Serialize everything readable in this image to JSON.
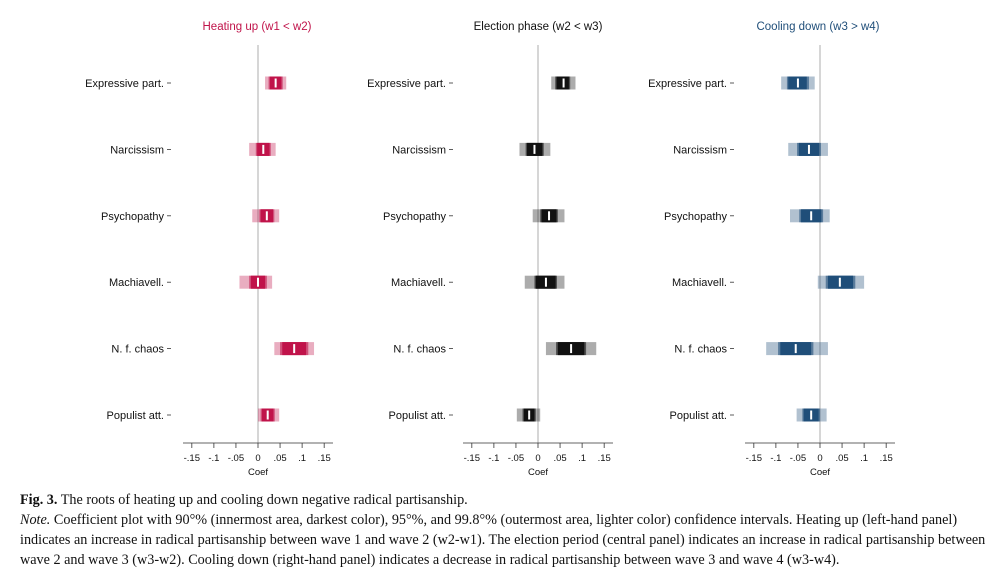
{
  "chart_data": [
    {
      "type": "coefficient-plot",
      "title": "Heating up (w1 < w2)",
      "title_color": "#c0134a",
      "color": "#c0134a",
      "xlabel": "Coef",
      "xlim": [
        -0.17,
        0.17
      ],
      "xticks": [
        -0.15,
        -0.1,
        -0.05,
        0,
        0.05,
        0.1,
        0.15
      ],
      "xtick_labels": [
        "-.15",
        "-.1",
        "-.05",
        "0",
        ".05",
        ".1",
        ".15"
      ],
      "categories": [
        "Expressive part.",
        "Narcissism",
        "Psychopathy",
        "Machiavell.",
        "N. f. chaos",
        "Populist att."
      ],
      "points": [
        {
          "label": "Expressive part.",
          "coef": 0.04,
          "ci90": [
            0.027,
            0.053
          ],
          "ci95": [
            0.024,
            0.056
          ],
          "ci998": [
            0.016,
            0.064
          ]
        },
        {
          "label": "Narcissism",
          "coef": 0.012,
          "ci90": [
            -0.002,
            0.026
          ],
          "ci95": [
            -0.005,
            0.029
          ],
          "ci998": [
            -0.02,
            0.04
          ]
        },
        {
          "label": "Psychopathy",
          "coef": 0.02,
          "ci90": [
            0.006,
            0.034
          ],
          "ci95": [
            0.003,
            0.037
          ],
          "ci998": [
            -0.013,
            0.048
          ]
        },
        {
          "label": "Machiavell.",
          "coef": 0.0,
          "ci90": [
            -0.016,
            0.016
          ],
          "ci95": [
            -0.02,
            0.02
          ],
          "ci998": [
            -0.042,
            0.032
          ]
        },
        {
          "label": "N. f. chaos",
          "coef": 0.082,
          "ci90": [
            0.055,
            0.109
          ],
          "ci95": [
            0.05,
            0.114
          ],
          "ci998": [
            0.037,
            0.127
          ]
        },
        {
          "label": "Populist att.",
          "coef": 0.022,
          "ci90": [
            0.009,
            0.035
          ],
          "ci95": [
            0.006,
            0.038
          ],
          "ci998": [
            0.0,
            0.048
          ]
        }
      ]
    },
    {
      "type": "coefficient-plot",
      "title": "Election phase (w2 < w3)",
      "title_color": "#111111",
      "color": "#111111",
      "xlabel": "Coef",
      "xlim": [
        -0.17,
        0.17
      ],
      "xticks": [
        -0.15,
        -0.1,
        -0.05,
        0,
        0.05,
        0.1,
        0.15
      ],
      "xtick_labels": [
        "-.15",
        "-.1",
        "-.05",
        "0",
        ".05",
        ".1",
        ".15"
      ],
      "categories": [
        "Expressive part.",
        "Narcissism",
        "Psychopathy",
        "Machiavell.",
        "N. f. chaos",
        "Populist att."
      ],
      "points": [
        {
          "label": "Expressive part.",
          "coef": 0.058,
          "ci90": [
            0.042,
            0.07
          ],
          "ci95": [
            0.039,
            0.073
          ],
          "ci998": [
            0.03,
            0.085
          ]
        },
        {
          "label": "Narcissism",
          "coef": -0.008,
          "ci90": [
            -0.025,
            0.01
          ],
          "ci95": [
            -0.028,
            0.013
          ],
          "ci998": [
            -0.042,
            0.028
          ]
        },
        {
          "label": "Psychopathy",
          "coef": 0.025,
          "ci90": [
            0.008,
            0.042
          ],
          "ci95": [
            0.005,
            0.045
          ],
          "ci998": [
            -0.012,
            0.06
          ]
        },
        {
          "label": "Machiavell.",
          "coef": 0.018,
          "ci90": [
            -0.005,
            0.04
          ],
          "ci95": [
            -0.008,
            0.043
          ],
          "ci998": [
            -0.03,
            0.06
          ]
        },
        {
          "label": "N. f. chaos",
          "coef": 0.075,
          "ci90": [
            0.045,
            0.105
          ],
          "ci95": [
            0.041,
            0.109
          ],
          "ci998": [
            0.018,
            0.132
          ]
        },
        {
          "label": "Populist att.",
          "coef": -0.02,
          "ci90": [
            -0.032,
            -0.008
          ],
          "ci95": [
            -0.035,
            -0.005
          ],
          "ci998": [
            -0.048,
            0.005
          ]
        }
      ]
    },
    {
      "type": "coefficient-plot",
      "title": "Cooling down (w3 > w4)",
      "title_color": "#1f4e79",
      "color": "#1f4e79",
      "xlabel": "Coef",
      "xlim": [
        -0.17,
        0.17
      ],
      "xticks": [
        -0.15,
        -0.1,
        -0.05,
        0,
        0.05,
        0.1,
        0.15
      ],
      "xtick_labels": [
        "-.15",
        "-.1",
        "-.05",
        "0",
        ".05",
        ".1",
        ".15"
      ],
      "categories": [
        "Expressive part.",
        "Narcissism",
        "Psychopathy",
        "Machiavell.",
        "N. f. chaos",
        "Populist att."
      ],
      "points": [
        {
          "label": "Expressive part.",
          "coef": -0.05,
          "ci90": [
            -0.072,
            -0.03
          ],
          "ci95": [
            -0.075,
            -0.025
          ],
          "ci998": [
            -0.088,
            -0.012
          ]
        },
        {
          "label": "Narcissism",
          "coef": -0.025,
          "ci90": [
            -0.048,
            -0.002
          ],
          "ci95": [
            -0.052,
            0.002
          ],
          "ci998": [
            -0.072,
            0.018
          ]
        },
        {
          "label": "Psychopathy",
          "coef": -0.02,
          "ci90": [
            -0.043,
            0.003
          ],
          "ci95": [
            -0.047,
            0.007
          ],
          "ci998": [
            -0.068,
            0.022
          ]
        },
        {
          "label": "Machiavell.",
          "coef": 0.045,
          "ci90": [
            0.018,
            0.075
          ],
          "ci95": [
            0.013,
            0.08
          ],
          "ci998": [
            -0.005,
            0.1
          ]
        },
        {
          "label": "N. f. chaos",
          "coef": -0.055,
          "ci90": [
            -0.09,
            -0.02
          ],
          "ci95": [
            -0.095,
            -0.015
          ],
          "ci998": [
            -0.122,
            0.018
          ]
        },
        {
          "label": "Populist att.",
          "coef": -0.02,
          "ci90": [
            -0.037,
            -0.003
          ],
          "ci95": [
            -0.04,
            0.0
          ],
          "ci998": [
            -0.053,
            0.015
          ]
        }
      ]
    }
  ],
  "caption": {
    "fig_label": "Fig. 3.",
    "title": "The roots of heating up and cooling down negative radical partisanship.",
    "note_label": "Note.",
    "note_text": "Coefficient plot with 90°% (innermost area, darkest color), 95°%, and 99.8°% (outermost area, lighter color) confidence intervals. Heating up (left-hand panel) indicates an increase in radical partisanship between wave 1 and wave 2 (w2-w1). The election period (central panel) indicates an increase in radical partisanship between wave 2 and wave 3 (w3-w2). Cooling down (right-hand panel) indicates a decrease in radical partisanship between wave 3 and wave 4 (w3-w4)."
  }
}
